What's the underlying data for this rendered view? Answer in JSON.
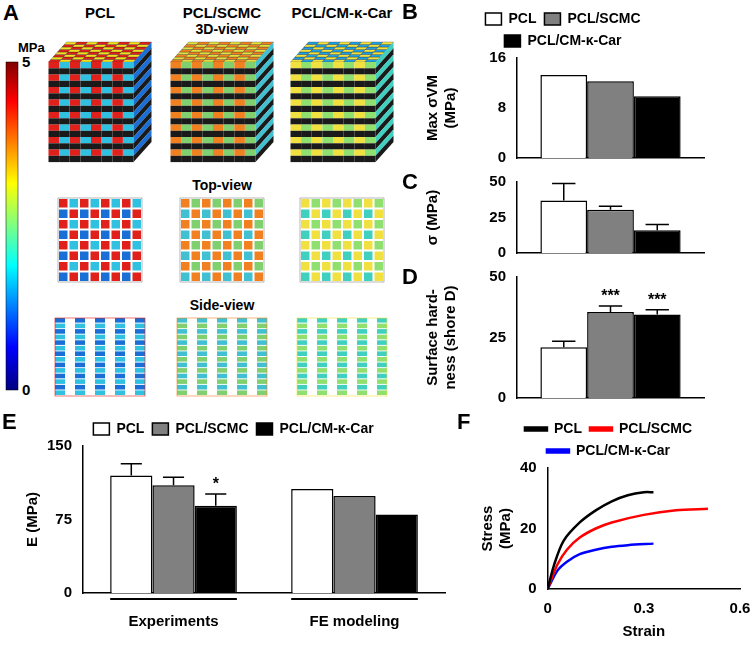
{
  "figure_a": {
    "panel": "A",
    "columns": [
      "PCL",
      "PCL/SCMC",
      "PCL/CM-κ-Car"
    ],
    "views": [
      "3D-view",
      "Top-view",
      "Side-view"
    ],
    "colorbar": {
      "label": "MPa",
      "range": [
        0,
        5
      ],
      "ticks": [
        5,
        0
      ]
    }
  },
  "chart_data": [
    {
      "panel": "B",
      "type": "bar",
      "y_label": [
        "Max σVM",
        "(MPa)"
      ],
      "categories": [
        null
      ],
      "series": [
        {
          "name": "PCL",
          "color": "#ffffff",
          "values": [
            13.3
          ]
        },
        {
          "name": "PCL/SCMC",
          "color": "#808080",
          "values": [
            12.3
          ]
        },
        {
          "name": "PCL/CM-κ-Car",
          "color": "#000000",
          "values": [
            9.9
          ]
        }
      ],
      "ylim": [
        0,
        16
      ],
      "yticks": [
        0,
        8,
        16
      ],
      "grid": false,
      "legend": "top",
      "tick_labels": "y"
    },
    {
      "panel": "C",
      "type": "bar",
      "y_label": "σ (MPa)",
      "categories": [
        null
      ],
      "series": [
        {
          "name": "PCL",
          "color": "#ffffff",
          "values": [
            37
          ],
          "errors": [
            12
          ]
        },
        {
          "name": "PCL/SCMC",
          "color": "#808080",
          "values": [
            30.5
          ],
          "errors": [
            2.5
          ]
        },
        {
          "name": "PCL/CM-κ-Car",
          "color": "#000000",
          "values": [
            16
          ],
          "errors": [
            4
          ]
        }
      ],
      "ylim": [
        0,
        50
      ],
      "yticks": [
        0,
        25,
        50
      ],
      "grid": false,
      "tick_labels": "y"
    },
    {
      "panel": "D",
      "type": "bar",
      "y_label": [
        "Surface hard-",
        "ness (shore D)"
      ],
      "categories": [
        null
      ],
      "series": [
        {
          "name": "PCL",
          "color": "#ffffff",
          "values": [
            21
          ],
          "errors": [
            2.5
          ]
        },
        {
          "name": "PCL/SCMC",
          "color": "#808080",
          "values": [
            35.5
          ],
          "errors": [
            2.5
          ],
          "annotations": [
            "***"
          ]
        },
        {
          "name": "PCL/CM-κ-Car",
          "color": "#000000",
          "values": [
            34.5
          ],
          "errors": [
            2
          ],
          "annotations": [
            "***"
          ]
        }
      ],
      "ylim": [
        0,
        50
      ],
      "yticks": [
        0,
        25,
        50
      ],
      "grid": false,
      "tick_labels": "y"
    },
    {
      "panel": "E",
      "type": "bar",
      "y_label": "E (MPa)",
      "categories": [
        "Experiments",
        "FE modeling"
      ],
      "series": [
        {
          "name": "PCL",
          "color": "#ffffff",
          "values": [
            120,
            106
          ],
          "errors": [
            12,
            null
          ]
        },
        {
          "name": "PCL/SCMC",
          "color": "#808080",
          "values": [
            110,
            99
          ],
          "errors": [
            8,
            null
          ]
        },
        {
          "name": "PCL/CM-κ-Car",
          "color": "#000000",
          "values": [
            89,
            80
          ],
          "errors": [
            12,
            null
          ],
          "annotations": [
            "*",
            null
          ]
        }
      ],
      "ylim": [
        0,
        150
      ],
      "yticks": [
        0,
        75,
        150
      ],
      "grid": false,
      "legend": "top"
    },
    {
      "panel": "F",
      "type": "line",
      "x_label": "Strain",
      "y_label": [
        "Stress",
        "(MPa)"
      ],
      "series": [
        {
          "name": "PCL",
          "color": "#000000",
          "x": [
            0,
            0.02,
            0.05,
            0.1,
            0.15,
            0.2,
            0.25,
            0.3,
            0.33
          ],
          "values": [
            0,
            8,
            16,
            22,
            26,
            29,
            31,
            32,
            32
          ]
        },
        {
          "name": "PCL/SCMC",
          "color": "#ff0000",
          "x": [
            0,
            0.03,
            0.06,
            0.1,
            0.15,
            0.2,
            0.3,
            0.4,
            0.5
          ],
          "values": [
            0,
            8,
            13,
            17,
            20,
            22,
            24.5,
            26,
            26.5
          ]
        },
        {
          "name": "PCL/CM-κ-Car",
          "color": "#0000ff",
          "x": [
            0,
            0.03,
            0.06,
            0.1,
            0.15,
            0.2,
            0.25,
            0.33
          ],
          "values": [
            0,
            6,
            9,
            11.5,
            13,
            14,
            14.5,
            15
          ]
        }
      ],
      "xlim": [
        0,
        0.6
      ],
      "xticks": [
        0,
        0.3,
        0.6
      ],
      "ylim": [
        0,
        40
      ],
      "yticks": [
        0,
        20,
        40
      ],
      "grid": false,
      "legend": "top"
    }
  ]
}
